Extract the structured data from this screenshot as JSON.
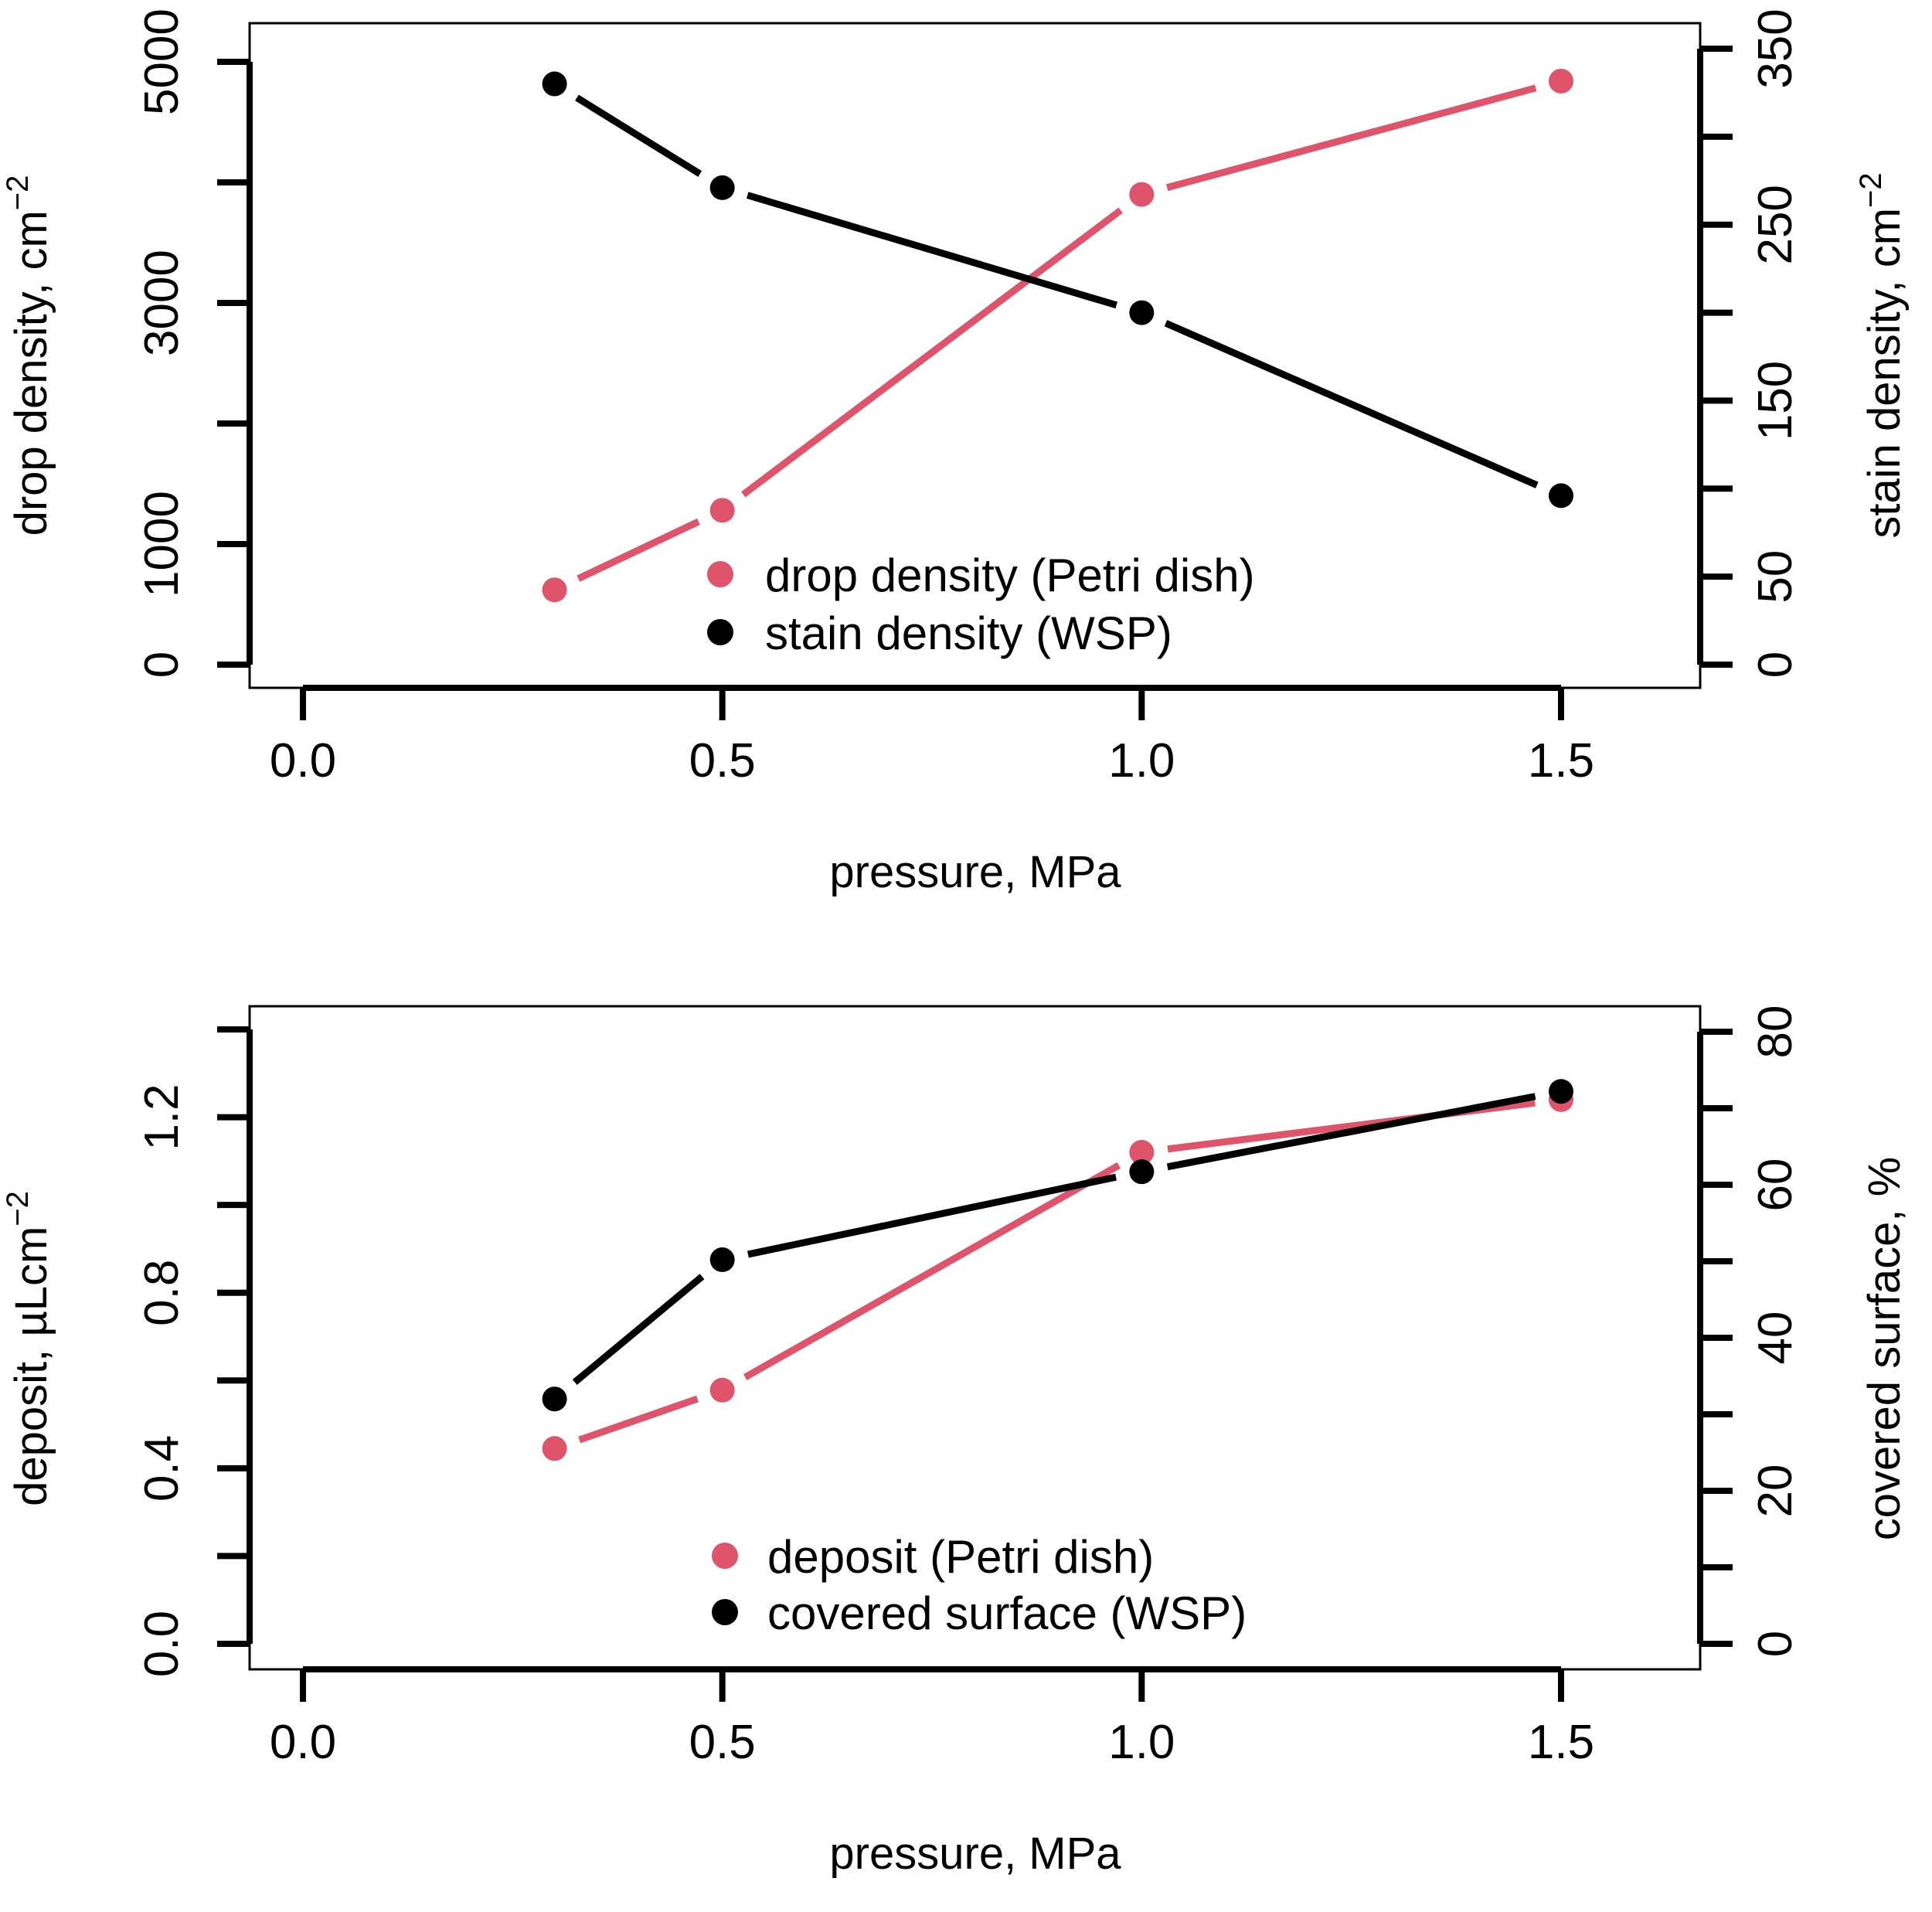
{
  "colors": {
    "primary": "#DF536B",
    "secondary": "#000000",
    "background": "#FFFFFF"
  },
  "chart_data": [
    {
      "type": "line",
      "title": "",
      "xlabel": "pressure, MPa",
      "ylabel": "drop density,  cm",
      "ylabel_exponent": "−2",
      "y2label": "stain density,  cm",
      "y2label_exponent": "−2",
      "x": [
        0.3,
        0.5,
        1.0,
        1.5
      ],
      "xlim": [
        0.0,
        1.5
      ],
      "xticks": [
        "0.0",
        "0.5",
        "1.0",
        "1.5"
      ],
      "ylim": [
        0,
        5000
      ],
      "yticks": [
        "0",
        "1000",
        "3000",
        "5000"
      ],
      "y2lim": [
        0,
        350
      ],
      "y2ticks": [
        "0",
        "50",
        "150",
        "250",
        "350"
      ],
      "grid": false,
      "legend_position": "bottom-center",
      "series": [
        {
          "name": "drop density (Petri dish)",
          "axis": "left",
          "color": "#DF536B",
          "values": [
            620,
            1280,
            3900,
            4840
          ]
        },
        {
          "name": "stain density (WSP)",
          "axis": "right",
          "color": "#000000",
          "values": [
            330,
            271,
            200,
            96
          ]
        }
      ]
    },
    {
      "type": "line",
      "title": "",
      "xlabel": "pressure, MPa",
      "ylabel": "deposit,  µLcm",
      "ylabel_exponent": "−2",
      "y2label": "covered surface,  %",
      "x": [
        0.3,
        0.5,
        1.0,
        1.5
      ],
      "xlim": [
        0.0,
        1.5
      ],
      "xticks": [
        "0.0",
        "0.5",
        "1.0",
        "1.5"
      ],
      "ylim": [
        0,
        1.4
      ],
      "yticks": [
        "0.0",
        "0.4",
        "0.8",
        "1.2"
      ],
      "y2lim": [
        0,
        80
      ],
      "y2ticks": [
        "0",
        "20",
        "40",
        "60",
        "80"
      ],
      "grid": false,
      "legend_position": "bottom-center",
      "series": [
        {
          "name": "deposit (Petri dish)",
          "axis": "left",
          "color": "#DF536B",
          "values": [
            0.445,
            0.578,
            1.12,
            1.24
          ]
        },
        {
          "name": "covered surface (WSP)",
          "axis": "right",
          "color": "#000000",
          "values": [
            32.0,
            50.2,
            61.7,
            72.2
          ]
        }
      ]
    }
  ]
}
